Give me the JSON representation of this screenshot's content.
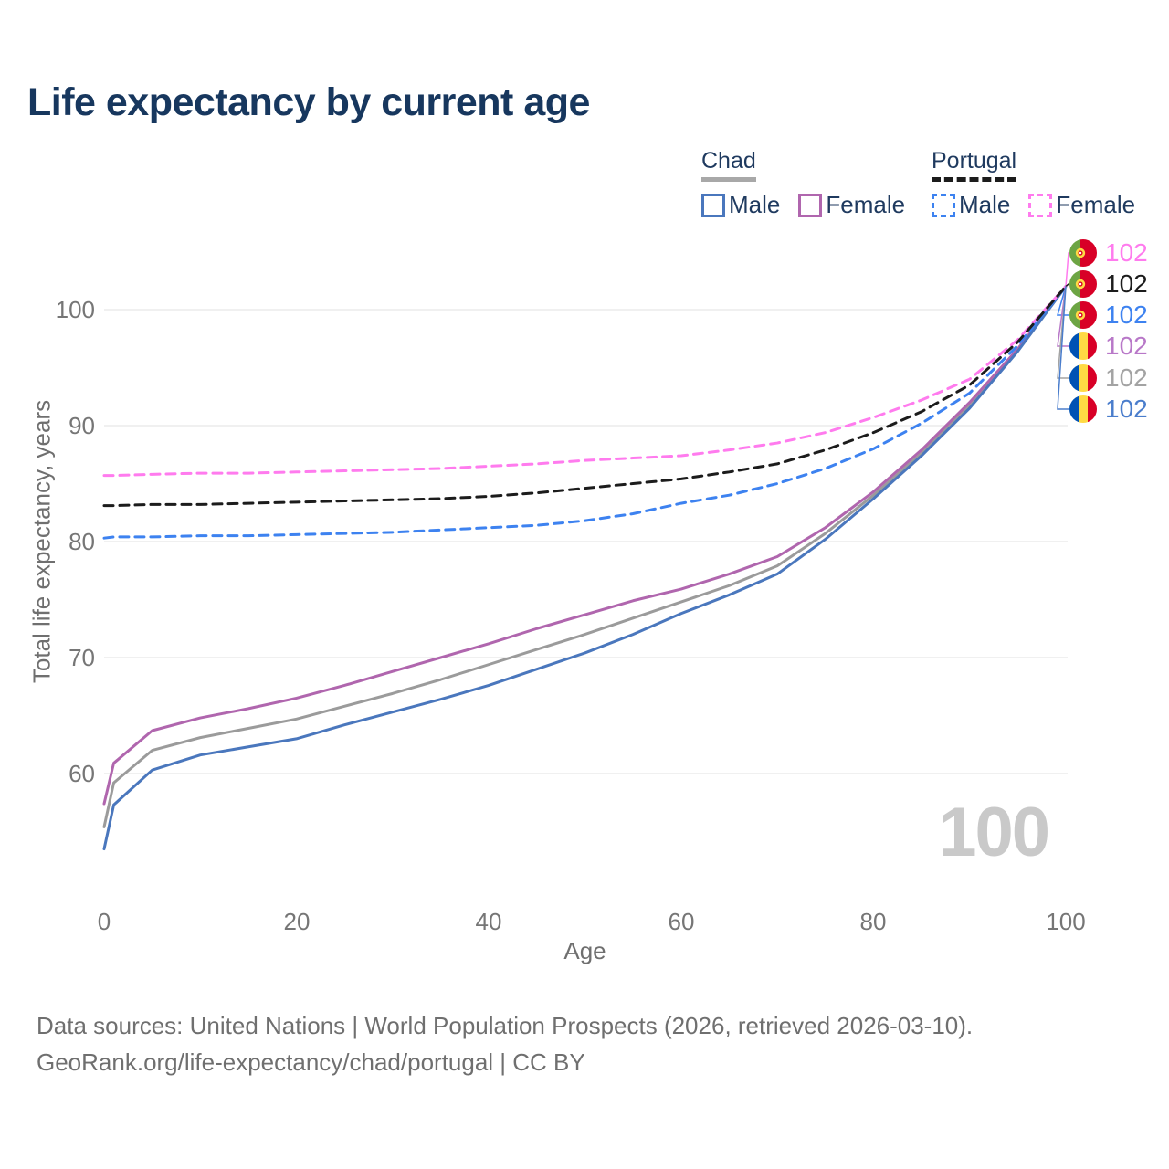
{
  "title": "Life expectancy by current age",
  "legend": {
    "chad": {
      "label": "Chad",
      "male": "Male",
      "female": "Female"
    },
    "portugal": {
      "label": "Portugal",
      "male": "Male",
      "female": "Female"
    }
  },
  "colors": {
    "chad_male": "#4a77bd",
    "chad_female": "#b066ae",
    "chad_both": "#9b9b9b",
    "portugal_male": "#3d82f0",
    "portugal_female": "#ff7bee",
    "portugal_both": "#1c1c1c",
    "title_navy": "#17375e",
    "grid": "#ebebeb",
    "axis_text": "#767676",
    "watermark_gray": "#c9c9c9"
  },
  "chart_data": {
    "type": "line",
    "title": "Life expectancy by current age",
    "xlabel": "Age",
    "ylabel": "Total life expectancy, years",
    "xlim": [
      0,
      100
    ],
    "ylim": [
      53,
      105
    ],
    "xticks": [
      0,
      20,
      40,
      60,
      80,
      100
    ],
    "yticks": [
      100,
      90,
      80,
      70,
      60
    ],
    "grid": "horizontal-only",
    "legend_position": "top-right",
    "x": [
      0,
      1,
      5,
      10,
      15,
      20,
      25,
      30,
      35,
      40,
      45,
      50,
      55,
      60,
      65,
      70,
      75,
      80,
      85,
      90,
      95,
      100
    ],
    "series": [
      {
        "name": "Chad Both sexes",
        "country": "Chad",
        "sex": "Both",
        "style": "solid",
        "color": "#9b9b9b",
        "values": [
          55.4,
          59.2,
          62.0,
          63.1,
          63.9,
          64.7,
          65.8,
          66.9,
          68.1,
          69.4,
          70.7,
          72.0,
          73.4,
          74.8,
          76.2,
          77.9,
          80.7,
          84.0,
          87.6,
          91.8,
          96.5,
          102
        ]
      },
      {
        "name": "Chad Female",
        "country": "Chad",
        "sex": "Female",
        "style": "solid",
        "color": "#b066ae",
        "values": [
          57.4,
          60.9,
          63.7,
          64.8,
          65.6,
          66.5,
          67.6,
          68.8,
          70.0,
          71.2,
          72.5,
          73.7,
          74.9,
          75.9,
          77.2,
          78.7,
          81.2,
          84.3,
          87.9,
          92.0,
          96.6,
          102
        ]
      },
      {
        "name": "Chad Male",
        "country": "Chad",
        "sex": "Male",
        "style": "solid",
        "color": "#4a77bd",
        "values": [
          53.5,
          57.3,
          60.3,
          61.6,
          62.3,
          63.0,
          64.2,
          65.3,
          66.4,
          67.6,
          69.0,
          70.4,
          72.0,
          73.8,
          75.4,
          77.2,
          80.2,
          83.7,
          87.4,
          91.5,
          96.4,
          102
        ]
      },
      {
        "name": "Portugal Male",
        "country": "Portugal",
        "sex": "Male",
        "style": "dashed",
        "color": "#3d82f0",
        "values": [
          80.3,
          80.4,
          80.4,
          80.5,
          80.5,
          80.6,
          80.7,
          80.8,
          81.0,
          81.2,
          81.4,
          81.8,
          82.4,
          83.3,
          84.0,
          85.0,
          86.3,
          88.0,
          90.2,
          92.8,
          96.9,
          102
        ]
      },
      {
        "name": "Portugal Female",
        "country": "Portugal",
        "sex": "Female",
        "style": "dashed",
        "color": "#ff7bee",
        "values": [
          85.7,
          85.7,
          85.8,
          85.9,
          85.9,
          86.0,
          86.1,
          86.2,
          86.3,
          86.5,
          86.7,
          87.0,
          87.2,
          87.4,
          87.9,
          88.5,
          89.4,
          90.7,
          92.2,
          94.0,
          97.4,
          102
        ]
      },
      {
        "name": "Portugal Both sexes",
        "country": "Portugal",
        "sex": "Both",
        "style": "dashed",
        "color": "#1c1c1c",
        "values": [
          83.1,
          83.1,
          83.2,
          83.2,
          83.3,
          83.4,
          83.5,
          83.6,
          83.7,
          83.9,
          84.2,
          84.6,
          85.0,
          85.4,
          86.0,
          86.7,
          87.9,
          89.4,
          91.2,
          93.5,
          97.2,
          102
        ]
      }
    ]
  },
  "end_labels": [
    {
      "flag": "Portugal",
      "series": "Portugal Female",
      "value": "102",
      "color": "#ff7bee"
    },
    {
      "flag": "Portugal",
      "series": "Portugal Both sexes",
      "value": "102",
      "color": "#1c1c1c"
    },
    {
      "flag": "Portugal",
      "series": "Portugal Male",
      "value": "102",
      "color": "#3d82f0"
    },
    {
      "flag": "Chad",
      "series": "Chad Female",
      "value": "102",
      "color": "#b878c8"
    },
    {
      "flag": "Chad",
      "series": "Chad Both sexes",
      "value": "102",
      "color": "#a3a3a3"
    },
    {
      "flag": "Chad",
      "series": "Chad Male",
      "value": "102",
      "color": "#4a7dcc"
    }
  ],
  "age_indicator": "100",
  "footer": {
    "line1": "Data sources: United Nations | World Population Prospects (2026, retrieved 2026-03-10).",
    "line2": "GeoRank.org/life-expectancy/chad/portugal | CC BY"
  }
}
